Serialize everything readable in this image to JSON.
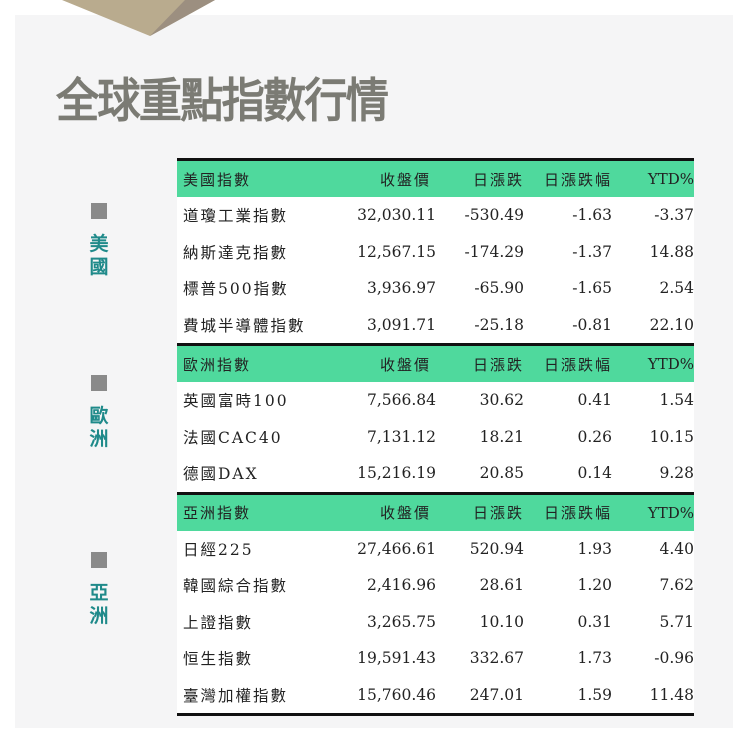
{
  "title": "全球重點指數行情",
  "colors": {
    "header_bg": "#4fd99d",
    "region_label": "#1f8a8a",
    "title": "#7b7b74"
  },
  "regions": [
    {
      "label": [
        "美",
        "國"
      ]
    },
    {
      "label": [
        "歐",
        "洲"
      ]
    },
    {
      "label": [
        "亞",
        "洲"
      ]
    }
  ],
  "sections": [
    {
      "header": [
        "美國指數",
        "收盤價",
        "日漲跌",
        "日漲跌幅",
        "YTD%"
      ],
      "rows": [
        [
          "道瓊工業指數",
          "32,030.11",
          "-530.49",
          "-1.63",
          "-3.37"
        ],
        [
          "納斯達克指數",
          "12,567.15",
          "-174.29",
          "-1.37",
          "14.88"
        ],
        [
          "標普500指數",
          "3,936.97",
          "-65.90",
          "-1.65",
          "2.54"
        ],
        [
          "費城半導體指數",
          "3,091.71",
          "-25.18",
          "-0.81",
          "22.10"
        ]
      ]
    },
    {
      "header": [
        "歐洲指數",
        "收盤價",
        "日漲跌",
        "日漲跌幅",
        "YTD%"
      ],
      "rows": [
        [
          "英國富時100",
          "7,566.84",
          "30.62",
          "0.41",
          "1.54"
        ],
        [
          "法國CAC40",
          "7,131.12",
          "18.21",
          "0.26",
          "10.15"
        ],
        [
          "德國DAX",
          "15,216.19",
          "20.85",
          "0.14",
          "9.28"
        ]
      ]
    },
    {
      "header": [
        "亞洲指數",
        "收盤價",
        "日漲跌",
        "日漲跌幅",
        "YTD%"
      ],
      "rows": [
        [
          "日經225",
          "27,466.61",
          "520.94",
          "1.93",
          "4.40"
        ],
        [
          "韓國綜合指數",
          "2,416.96",
          "28.61",
          "1.20",
          "7.62"
        ],
        [
          "上證指數",
          "3,265.75",
          "10.10",
          "0.31",
          "5.71"
        ],
        [
          "恒生指數",
          "19,591.43",
          "332.67",
          "1.73",
          "-0.96"
        ],
        [
          "臺灣加權指數",
          "15,760.46",
          "247.01",
          "1.59",
          "11.48"
        ]
      ]
    }
  ]
}
